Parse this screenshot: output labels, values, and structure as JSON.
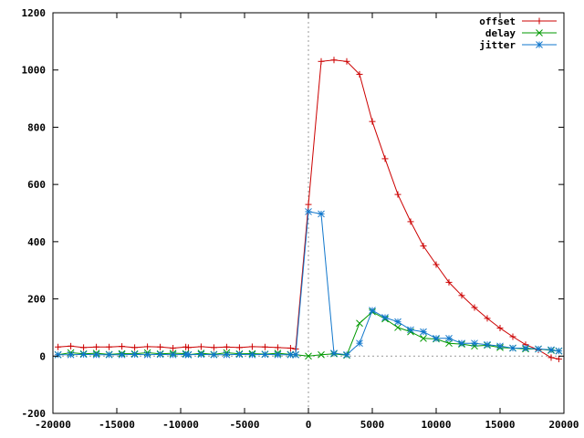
{
  "chart_data": {
    "type": "line",
    "title": "",
    "xlabel": "",
    "ylabel": "",
    "xlim": [
      -20000,
      20000
    ],
    "ylim": [
      -200,
      1200
    ],
    "xticks": [
      -20000,
      -15000,
      -10000,
      -5000,
      0,
      5000,
      10000,
      15000,
      20000
    ],
    "yticks": [
      -200,
      0,
      200,
      400,
      600,
      800,
      1000,
      1200
    ],
    "xtick_labels": [
      "-20000",
      "-15000",
      "-10000",
      "-5000",
      "0",
      "5000",
      "10000",
      "15000",
      "20000"
    ],
    "ytick_labels": [
      "-200",
      "0",
      "200",
      "400",
      "600",
      "800",
      "1000",
      "1200"
    ],
    "grid": false,
    "zero_axes": true,
    "legend_position": "top-right",
    "series": [
      {
        "name": "offset",
        "color": "#cc0000",
        "marker": "plus",
        "segments": [
          [
            [
              -19600,
              32
            ],
            [
              -18600,
              35
            ],
            [
              -17600,
              30
            ],
            [
              -16600,
              32
            ],
            [
              -15600,
              32
            ],
            [
              -14600,
              34
            ],
            [
              -13600,
              30
            ],
            [
              -12600,
              33
            ],
            [
              -11600,
              32
            ],
            [
              -10600,
              28
            ],
            [
              -9600,
              32
            ]
          ],
          [
            [
              -9400,
              30
            ],
            [
              -8400,
              33
            ],
            [
              -7400,
              30
            ],
            [
              -6400,
              32
            ],
            [
              -5400,
              30
            ],
            [
              -4400,
              33
            ],
            [
              -3400,
              32
            ],
            [
              -2400,
              30
            ],
            [
              -1400,
              28
            ],
            [
              -1000,
              25
            ],
            [
              0,
              530
            ],
            [
              1000,
              1030
            ],
            [
              2000,
              1035
            ],
            [
              3000,
              1030
            ],
            [
              4000,
              985
            ],
            [
              5000,
              820
            ],
            [
              6000,
              690
            ],
            [
              7000,
              565
            ],
            [
              8000,
              470
            ],
            [
              9000,
              385
            ],
            [
              10000,
              320
            ],
            [
              11000,
              258
            ],
            [
              12000,
              212
            ],
            [
              13000,
              170
            ],
            [
              14000,
              132
            ],
            [
              15000,
              98
            ],
            [
              16000,
              68
            ],
            [
              17000,
              40
            ],
            [
              18000,
              22
            ],
            [
              19000,
              -5
            ],
            [
              19600,
              -10
            ]
          ]
        ]
      },
      {
        "name": "delay",
        "color": "#009900",
        "marker": "x",
        "segments": [
          [
            [
              -19600,
              5
            ],
            [
              -18600,
              12
            ],
            [
              -17600,
              8
            ],
            [
              -16600,
              10
            ],
            [
              -15600,
              6
            ],
            [
              -14600,
              9
            ],
            [
              -13600,
              8
            ],
            [
              -12600,
              12
            ],
            [
              -11600,
              8
            ],
            [
              -10600,
              10
            ],
            [
              -9600,
              9
            ]
          ],
          [
            [
              -9400,
              5
            ],
            [
              -8400,
              10
            ],
            [
              -7400,
              6
            ],
            [
              -6400,
              12
            ],
            [
              -5400,
              8
            ],
            [
              -4400,
              9
            ],
            [
              -3400,
              7
            ],
            [
              -2400,
              10
            ],
            [
              -1400,
              6
            ],
            [
              -1000,
              5
            ],
            [
              0,
              0
            ],
            [
              1000,
              5
            ],
            [
              2000,
              8
            ],
            [
              3000,
              3
            ],
            [
              4000,
              115
            ],
            [
              5000,
              155
            ],
            [
              6000,
              130
            ],
            [
              7000,
              100
            ],
            [
              8000,
              85
            ],
            [
              9000,
              62
            ],
            [
              10000,
              60
            ],
            [
              11000,
              45
            ],
            [
              12000,
              42
            ],
            [
              13000,
              35
            ],
            [
              14000,
              38
            ],
            [
              15000,
              30
            ],
            [
              16000,
              28
            ],
            [
              17000,
              25
            ],
            [
              18000,
              25
            ],
            [
              19000,
              20
            ],
            [
              19600,
              18
            ]
          ]
        ]
      },
      {
        "name": "jitter",
        "color": "#1177cc",
        "marker": "star",
        "segments": [
          [
            [
              -19600,
              5
            ],
            [
              -18600,
              5
            ],
            [
              -17600,
              6
            ],
            [
              -16600,
              5
            ],
            [
              -15600,
              5
            ],
            [
              -14600,
              5
            ],
            [
              -13600,
              6
            ],
            [
              -12600,
              5
            ],
            [
              -11600,
              6
            ],
            [
              -10600,
              5
            ],
            [
              -9600,
              6
            ]
          ],
          [
            [
              -9400,
              5
            ],
            [
              -8400,
              6
            ],
            [
              -7400,
              5
            ],
            [
              -6400,
              5
            ],
            [
              -5400,
              6
            ],
            [
              -4400,
              5
            ],
            [
              -3400,
              6
            ],
            [
              -2400,
              5
            ],
            [
              -1400,
              5
            ],
            [
              -1000,
              5
            ],
            [
              0,
              505
            ],
            [
              1000,
              497
            ],
            [
              2000,
              10
            ],
            [
              3000,
              5
            ],
            [
              4000,
              45
            ],
            [
              5000,
              160
            ],
            [
              6000,
              135
            ],
            [
              7000,
              120
            ],
            [
              8000,
              92
            ],
            [
              9000,
              85
            ],
            [
              10000,
              62
            ],
            [
              11000,
              62
            ],
            [
              12000,
              45
            ],
            [
              13000,
              45
            ],
            [
              14000,
              40
            ],
            [
              15000,
              35
            ],
            [
              16000,
              28
            ],
            [
              17000,
              28
            ],
            [
              18000,
              25
            ],
            [
              19000,
              22
            ],
            [
              19600,
              18
            ]
          ]
        ]
      }
    ]
  }
}
